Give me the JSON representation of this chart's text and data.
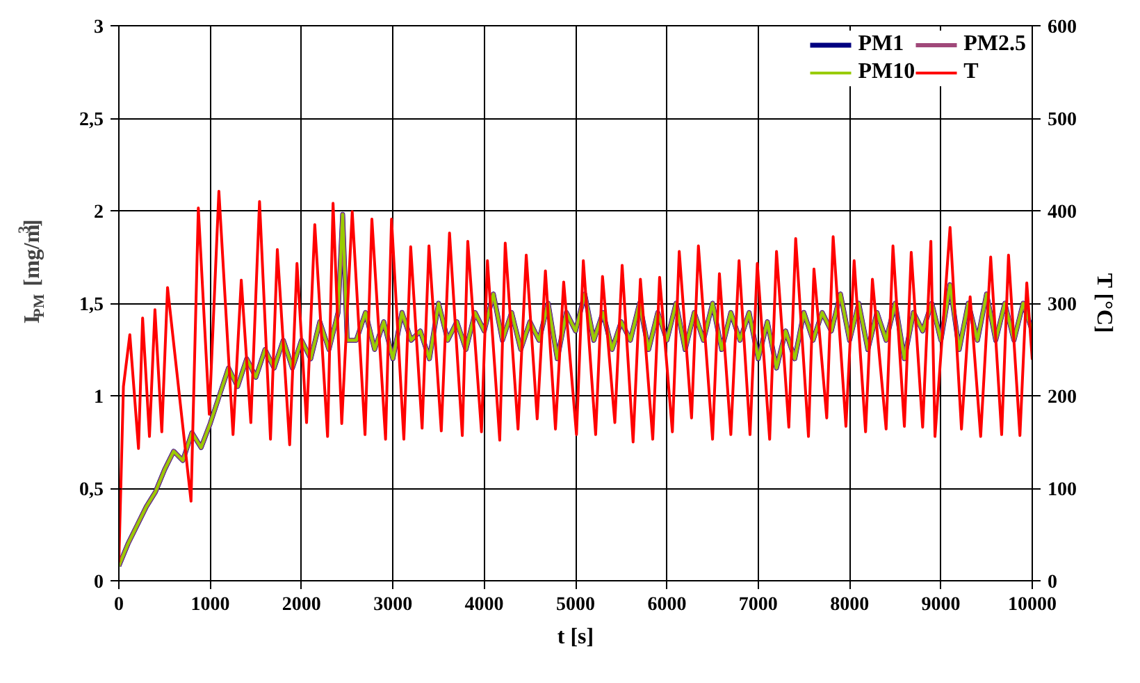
{
  "chart_data": {
    "type": "line",
    "xlabel": "t [s]",
    "ylabel": "I$_{PM}$  [mg/m$^{3}$]",
    "y2label": "T [°C]",
    "x": [
      0,
      100,
      200,
      300,
      400,
      500,
      600,
      700,
      800,
      900,
      1000,
      1100,
      1200,
      1300,
      1400,
      1500,
      1600,
      1700,
      1800,
      1900,
      2000,
      2100,
      2200,
      2300,
      2400,
      2450,
      2500,
      2600,
      2700,
      2800,
      2900,
      3000,
      3100,
      3200,
      3300,
      3400,
      3500,
      3600,
      3700,
      3800,
      3900,
      4000,
      4100,
      4200,
      4300,
      4400,
      4500,
      4600,
      4700,
      4800,
      4900,
      5000,
      5100,
      5200,
      5300,
      5400,
      5500,
      5600,
      5700,
      5800,
      5900,
      6000,
      6100,
      6200,
      6300,
      6400,
      6500,
      6600,
      6700,
      6800,
      6900,
      7000,
      7100,
      7200,
      7300,
      7400,
      7500,
      7600,
      7700,
      7800,
      7900,
      8000,
      8100,
      8200,
      8300,
      8400,
      8500,
      8600,
      8700,
      8800,
      8900,
      9000,
      9100,
      9200,
      9300,
      9400,
      9500,
      9600,
      9700,
      9800,
      9900,
      10000
    ],
    "series": [
      {
        "name": "PM1",
        "color": "#000080",
        "values": [
          0.08,
          0.2,
          0.3,
          0.4,
          0.48,
          0.6,
          0.7,
          0.65,
          0.8,
          0.72,
          0.85,
          1.0,
          1.15,
          1.05,
          1.2,
          1.1,
          1.25,
          1.15,
          1.3,
          1.15,
          1.3,
          1.2,
          1.4,
          1.25,
          1.45,
          1.98,
          1.3,
          1.3,
          1.45,
          1.25,
          1.4,
          1.2,
          1.45,
          1.3,
          1.35,
          1.2,
          1.5,
          1.3,
          1.4,
          1.25,
          1.45,
          1.35,
          1.55,
          1.3,
          1.45,
          1.25,
          1.4,
          1.3,
          1.5,
          1.2,
          1.45,
          1.35,
          1.55,
          1.3,
          1.45,
          1.25,
          1.4,
          1.3,
          1.5,
          1.25,
          1.45,
          1.3,
          1.5,
          1.25,
          1.45,
          1.3,
          1.5,
          1.25,
          1.45,
          1.3,
          1.45,
          1.2,
          1.4,
          1.15,
          1.35,
          1.2,
          1.45,
          1.3,
          1.45,
          1.35,
          1.55,
          1.3,
          1.5,
          1.25,
          1.45,
          1.3,
          1.5,
          1.2,
          1.45,
          1.35,
          1.5,
          1.3,
          1.6,
          1.25,
          1.5,
          1.3,
          1.55,
          1.3,
          1.5,
          1.3,
          1.5,
          1.35
        ]
      },
      {
        "name": "PM2.5",
        "color": "#a0487a",
        "values": [
          0.08,
          0.2,
          0.3,
          0.4,
          0.48,
          0.6,
          0.7,
          0.65,
          0.8,
          0.72,
          0.85,
          1.0,
          1.15,
          1.05,
          1.2,
          1.1,
          1.25,
          1.15,
          1.3,
          1.15,
          1.3,
          1.2,
          1.4,
          1.25,
          1.45,
          1.98,
          1.3,
          1.3,
          1.45,
          1.25,
          1.4,
          1.2,
          1.45,
          1.3,
          1.35,
          1.2,
          1.5,
          1.3,
          1.4,
          1.25,
          1.45,
          1.35,
          1.55,
          1.3,
          1.45,
          1.25,
          1.4,
          1.3,
          1.5,
          1.2,
          1.45,
          1.35,
          1.55,
          1.3,
          1.45,
          1.25,
          1.4,
          1.3,
          1.5,
          1.25,
          1.45,
          1.3,
          1.5,
          1.25,
          1.45,
          1.3,
          1.5,
          1.25,
          1.45,
          1.3,
          1.45,
          1.2,
          1.4,
          1.15,
          1.35,
          1.2,
          1.45,
          1.3,
          1.45,
          1.35,
          1.55,
          1.3,
          1.5,
          1.25,
          1.45,
          1.3,
          1.5,
          1.2,
          1.45,
          1.35,
          1.5,
          1.3,
          1.6,
          1.25,
          1.5,
          1.3,
          1.55,
          1.3,
          1.5,
          1.3,
          1.5,
          1.35
        ]
      },
      {
        "name": "PM10",
        "color": "#99cc00",
        "values": [
          0.08,
          0.2,
          0.3,
          0.4,
          0.48,
          0.6,
          0.7,
          0.65,
          0.8,
          0.72,
          0.85,
          1.0,
          1.15,
          1.05,
          1.2,
          1.1,
          1.25,
          1.15,
          1.3,
          1.15,
          1.3,
          1.2,
          1.4,
          1.25,
          1.45,
          1.98,
          1.3,
          1.3,
          1.45,
          1.25,
          1.4,
          1.2,
          1.45,
          1.3,
          1.35,
          1.2,
          1.5,
          1.3,
          1.4,
          1.25,
          1.45,
          1.35,
          1.55,
          1.3,
          1.45,
          1.25,
          1.4,
          1.3,
          1.5,
          1.2,
          1.45,
          1.35,
          1.55,
          1.3,
          1.45,
          1.25,
          1.4,
          1.3,
          1.5,
          1.25,
          1.45,
          1.3,
          1.5,
          1.25,
          1.45,
          1.3,
          1.5,
          1.25,
          1.45,
          1.3,
          1.45,
          1.2,
          1.4,
          1.15,
          1.35,
          1.2,
          1.45,
          1.3,
          1.45,
          1.35,
          1.55,
          1.3,
          1.5,
          1.25,
          1.45,
          1.3,
          1.5,
          1.2,
          1.45,
          1.35,
          1.5,
          1.3,
          1.6,
          1.25,
          1.5,
          1.3,
          1.55,
          1.3,
          1.5,
          1.3,
          1.5,
          1.35
        ]
      },
      {
        "name": "T",
        "color": "#ff0000",
        "axis": "y2",
        "x": [
          0,
          50,
          120,
          215,
          260,
          335,
          395,
          470,
          533,
          790,
          870,
          990,
          1095,
          1250,
          1340,
          1445,
          1540,
          1660,
          1735,
          1870,
          1950,
          2055,
          2145,
          2285,
          2345,
          2440,
          2555,
          2695,
          2770,
          2920,
          2985,
          3120,
          3195,
          3320,
          3395,
          3530,
          3620,
          3760,
          3820,
          3970,
          4035,
          4170,
          4230,
          4370,
          4460,
          4580,
          4670,
          4780,
          4870,
          5010,
          5085,
          5220,
          5295,
          5430,
          5510,
          5630,
          5710,
          5845,
          5920,
          6060,
          6135,
          6270,
          6345,
          6500,
          6575,
          6700,
          6790,
          6910,
          6990,
          7125,
          7200,
          7335,
          7410,
          7550,
          7610,
          7750,
          7820,
          7960,
          8050,
          8175,
          8250,
          8400,
          8475,
          8600,
          8675,
          8800,
          8890,
          8935,
          9100,
          9225,
          9320,
          9435,
          9545,
          9665,
          9740,
          9865,
          9940,
          10000
        ],
        "values": [
          20,
          210,
          266,
          143,
          284,
          156,
          293,
          161,
          317,
          86,
          403,
          180,
          421,
          158,
          325,
          171,
          410,
          153,
          358,
          147,
          343,
          171,
          385,
          156,
          408,
          170,
          399,
          158,
          391,
          153,
          391,
          153,
          361,
          165,
          362,
          162,
          376,
          157,
          367,
          161,
          346,
          152,
          365,
          164,
          352,
          175,
          335,
          164,
          323,
          158,
          346,
          158,
          329,
          171,
          341,
          150,
          326,
          153,
          328,
          161,
          356,
          176,
          362,
          153,
          332,
          158,
          346,
          158,
          343,
          153,
          356,
          166,
          370,
          156,
          337,
          176,
          372,
          167,
          346,
          161,
          326,
          164,
          362,
          167,
          355,
          166,
          367,
          156,
          382,
          164,
          307,
          156,
          350,
          158,
          352,
          157,
          322,
          239
        ]
      }
    ],
    "xlim": [
      0,
      10000
    ],
    "xticks": [
      0,
      1000,
      2000,
      3000,
      4000,
      5000,
      6000,
      7000,
      8000,
      9000,
      10000
    ],
    "ylim": [
      0,
      3
    ],
    "yticks": [
      0,
      {
        "value": 0.5,
        "label": "0,5"
      },
      1,
      {
        "value": 1.5,
        "label": "1,5"
      },
      2,
      {
        "value": 2.5,
        "label": "2,5"
      },
      3
    ],
    "y2lim": [
      0,
      600
    ],
    "y2ticks": [
      0,
      100,
      200,
      300,
      400,
      500,
      600
    ],
    "grid": true,
    "legend": "top right",
    "marker": "none",
    "line_style": "solid"
  }
}
